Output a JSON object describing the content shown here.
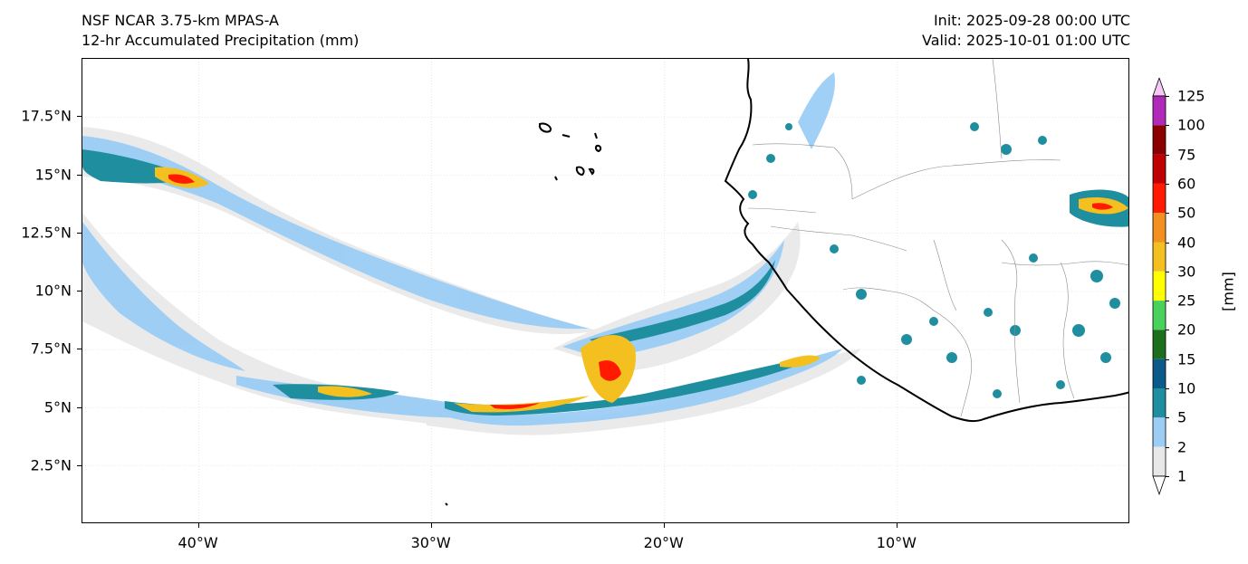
{
  "header": {
    "model": "NSF NCAR 3.75-km MPAS-A",
    "field": "12-hr Accumulated Precipitation (mm)",
    "init": "Init: 2025-09-28 00:00 UTC",
    "valid": "Valid: 2025-10-01 01:00 UTC"
  },
  "map": {
    "lon_range": [
      -45,
      0
    ],
    "lat_range": [
      0,
      20
    ],
    "lon_ticks": [
      {
        "value": -40,
        "label": "40°W"
      },
      {
        "value": -30,
        "label": "30°W"
      },
      {
        "value": -20,
        "label": "20°W"
      },
      {
        "value": -10,
        "label": "10°W"
      }
    ],
    "lat_ticks": [
      {
        "value": 2.5,
        "label": "2.5°N"
      },
      {
        "value": 5,
        "label": "5°N"
      },
      {
        "value": 7.5,
        "label": "7.5°N"
      },
      {
        "value": 10,
        "label": "10°N"
      },
      {
        "value": 12.5,
        "label": "12.5°N"
      },
      {
        "value": 15,
        "label": "15°N"
      },
      {
        "value": 17.5,
        "label": "17.5°N"
      }
    ],
    "grid": true
  },
  "colorbar": {
    "units": "[mm]",
    "levels": [
      "1",
      "2",
      "5",
      "10",
      "15",
      "20",
      "25",
      "30",
      "40",
      "50",
      "60",
      "75",
      "100",
      "125"
    ],
    "colors": [
      "#e8e8e8",
      "#9ccdf5",
      "#1f8fa0",
      "#0b5a8a",
      "#1d6e1d",
      "#48d25c",
      "#ffff00",
      "#f4c020",
      "#f29020",
      "#ff1a00",
      "#c00000",
      "#8a0000",
      "#b02ab8"
    ],
    "extend_max_color": "#f8c8f4",
    "extend_min_color": "#ffffff"
  }
}
